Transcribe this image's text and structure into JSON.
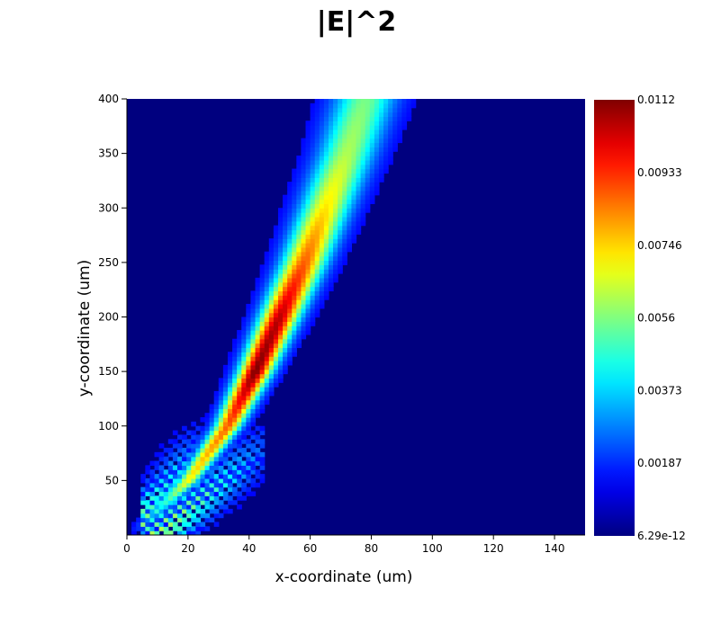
{
  "chart_data": {
    "type": "heatmap",
    "title": "|E|^2",
    "xlabel": "x-coordinate (um)",
    "ylabel": "y-coordinate (um)",
    "xlim": [
      0,
      150
    ],
    "ylim": [
      0,
      400
    ],
    "x_ticks": [
      0,
      20,
      40,
      60,
      80,
      100,
      120,
      140
    ],
    "x_tick_labels": [
      "0",
      "20",
      "40",
      "60",
      "80",
      "100",
      "120",
      "140"
    ],
    "y_ticks": [
      50,
      100,
      150,
      200,
      250,
      300,
      350,
      400
    ],
    "y_tick_labels": [
      "50",
      "100",
      "150",
      "200",
      "250",
      "300",
      "350",
      "400"
    ],
    "colormap": "jet",
    "colorbar": {
      "min": 6.29e-12,
      "max": 0.0112,
      "tick_values": [
        6.29e-12,
        0.00187,
        0.00373,
        0.0056,
        0.00746,
        0.00933,
        0.0112
      ],
      "tick_labels": [
        "6.29e-12",
        "0.00187",
        "0.00373",
        "0.0056",
        "0.00746",
        "0.00933",
        "0.0112"
      ]
    },
    "beam": {
      "description_points": [
        {
          "y": 0,
          "x_center": 2,
          "peak": 0.0
        },
        {
          "y": 50,
          "x_center": 20,
          "peak": 0.0065
        },
        {
          "y": 100,
          "x_center": 33,
          "peak": 0.0085
        },
        {
          "y": 150,
          "x_center": 42,
          "peak": 0.0112
        },
        {
          "y": 200,
          "x_center": 50,
          "peak": 0.0105
        },
        {
          "y": 250,
          "x_center": 58,
          "peak": 0.0085
        },
        {
          "y": 300,
          "x_center": 65,
          "peak": 0.0068
        },
        {
          "y": 350,
          "x_center": 72,
          "peak": 0.0055
        },
        {
          "y": 400,
          "x_center": 78,
          "peak": 0.0048
        }
      ],
      "fringe_region": {
        "y_max": 110,
        "x_min": 5,
        "x_max": 45
      }
    }
  }
}
